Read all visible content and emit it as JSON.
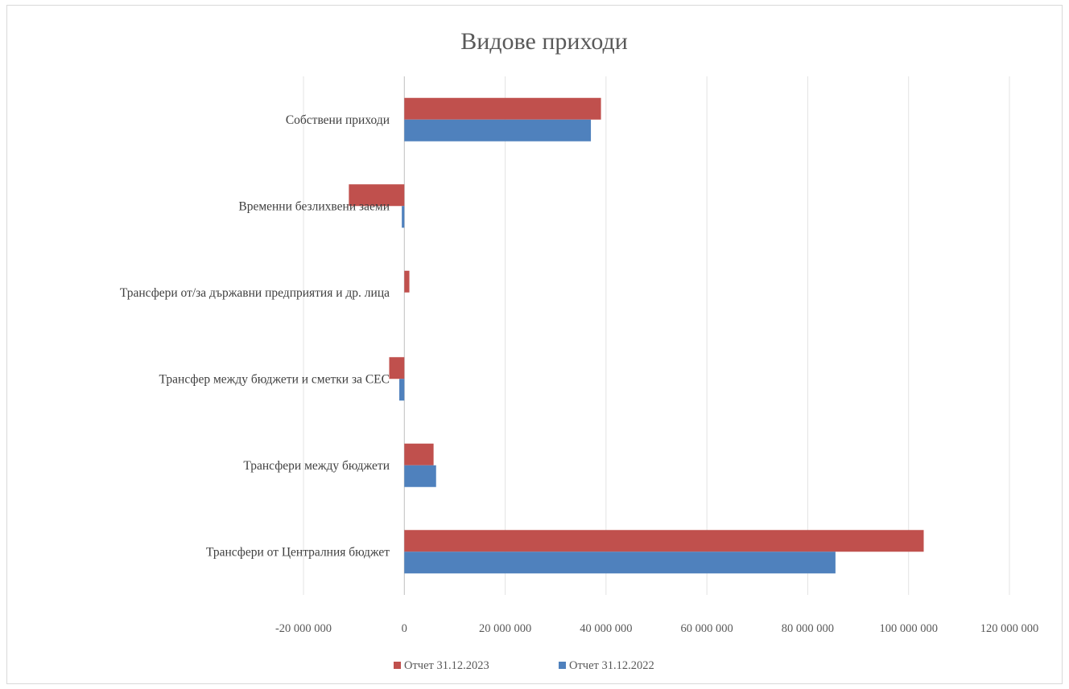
{
  "chart_data": {
    "type": "bar",
    "orientation": "horizontal",
    "title": "Видове приходи",
    "categories": [
      "Собствени приходи",
      "Временни безлихвени заеми",
      "Трансфери от/за държавни предприятия и др. лица",
      "Трансфер между бюджети и сметки за СЕС",
      "Трансфери между бюджети",
      "Трансфери от Централния  бюджет"
    ],
    "series": [
      {
        "name": "Отчет 31.12.2023",
        "color": "#C0504D",
        "values": [
          39000000,
          -11000000,
          1000000,
          -3000000,
          5800000,
          103000000
        ]
      },
      {
        "name": "Отчет 31.12.2022",
        "color": "#4F81BD",
        "values": [
          37000000,
          -500000,
          0,
          -1000000,
          6300000,
          85500000
        ]
      }
    ],
    "xlim": [
      -20000000,
      120000000
    ],
    "x_ticks": [
      -20000000,
      0,
      20000000,
      40000000,
      60000000,
      80000000,
      100000000,
      120000000
    ],
    "x_tick_labels": [
      "-20 000 000",
      "0",
      "20 000 000",
      "40 000 000",
      "60 000 000",
      "80 000 000",
      "100 000 000",
      "120 000 000"
    ],
    "grid": true,
    "legend_position": "bottom"
  }
}
